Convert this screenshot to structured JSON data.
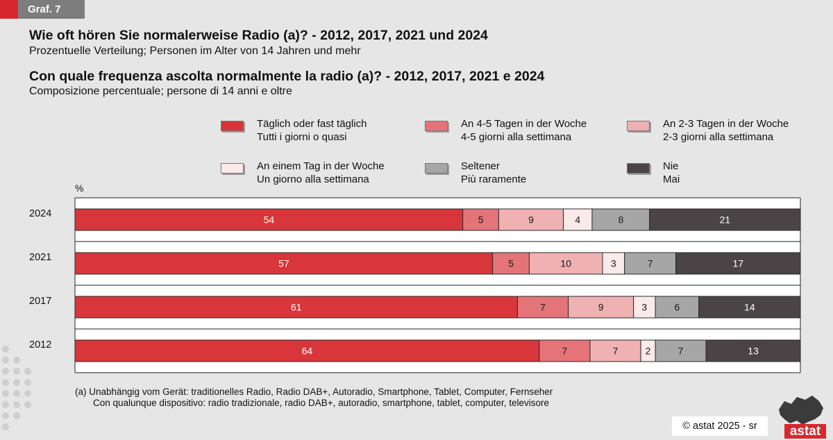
{
  "tag": "Graf. 7",
  "title_de": "Wie oft hören Sie normalerweise Radio (a)? - 2012, 2017, 2021 und 2024",
  "subtitle_de": "Prozentuelle Verteilung; Personen im Alter von 14 Jahren und mehr",
  "title_it": "Con quale frequenza ascolta normalmente la radio (a)? - 2012, 2017, 2021 e 2024",
  "subtitle_it": "Composizione percentuale; persone di 14 anni e oltre",
  "legend": [
    {
      "de": "Täglich oder fast täglich",
      "it": "Tutti i giorni o quasi",
      "color": "#d8363a"
    },
    {
      "de": "An 4-5 Tagen in der Woche",
      "it": "4-5 giorni alla settimana",
      "color": "#e47478"
    },
    {
      "de": "An 2-3 Tagen  in der Woche",
      "it": "2-3 giorni alla settimana",
      "color": "#efb1b1"
    },
    {
      "de": "An einem Tag in der Woche",
      "it": "Un giorno alla settimana",
      "color": "#fbeaea"
    },
    {
      "de": "Seltener",
      "it": "Più raramente",
      "color": "#a6a6a6"
    },
    {
      "de": "Nie",
      "it": "Mai",
      "color": "#4a4447"
    }
  ],
  "unit_label": "%",
  "chart_data": {
    "type": "bar",
    "orientation": "horizontal-stacked-100",
    "categories": [
      "2024",
      "2021",
      "2017",
      "2012"
    ],
    "series": [
      {
        "name": "Täglich oder fast täglich / Tutti i giorni o quasi",
        "values": [
          54,
          57,
          61,
          64
        ]
      },
      {
        "name": "An 4-5 Tagen in der Woche / 4-5 giorni alla settimana",
        "values": [
          5,
          5,
          7,
          7
        ]
      },
      {
        "name": "An 2-3 Tagen  in der Woche / 2-3 giorni alla settimana",
        "values": [
          9,
          10,
          9,
          7
        ]
      },
      {
        "name": "An einem Tag in der Woche / Un giorno alla settimana",
        "values": [
          4,
          3,
          3,
          2
        ]
      },
      {
        "name": "Seltener / Più raramente",
        "values": [
          8,
          7,
          6,
          7
        ]
      },
      {
        "name": "Nie / Mai",
        "values": [
          21,
          17,
          14,
          13
        ]
      }
    ],
    "xlim": [
      0,
      100
    ],
    "ylabel": "%",
    "legend_position": "top"
  },
  "footnote_line1": "(a)  Unabhängig vom Gerät: traditionelles Radio, Radio DAB+, Autoradio, Smartphone, Tablet, Computer, Fernseher",
  "footnote_line2": "Con qualunque dispositivo: radio tradizionale, radio DAB+, autoradio, smartphone, tablet, computer, televisore",
  "copyright": "©  astat 2025 - sr",
  "logo": "astat"
}
